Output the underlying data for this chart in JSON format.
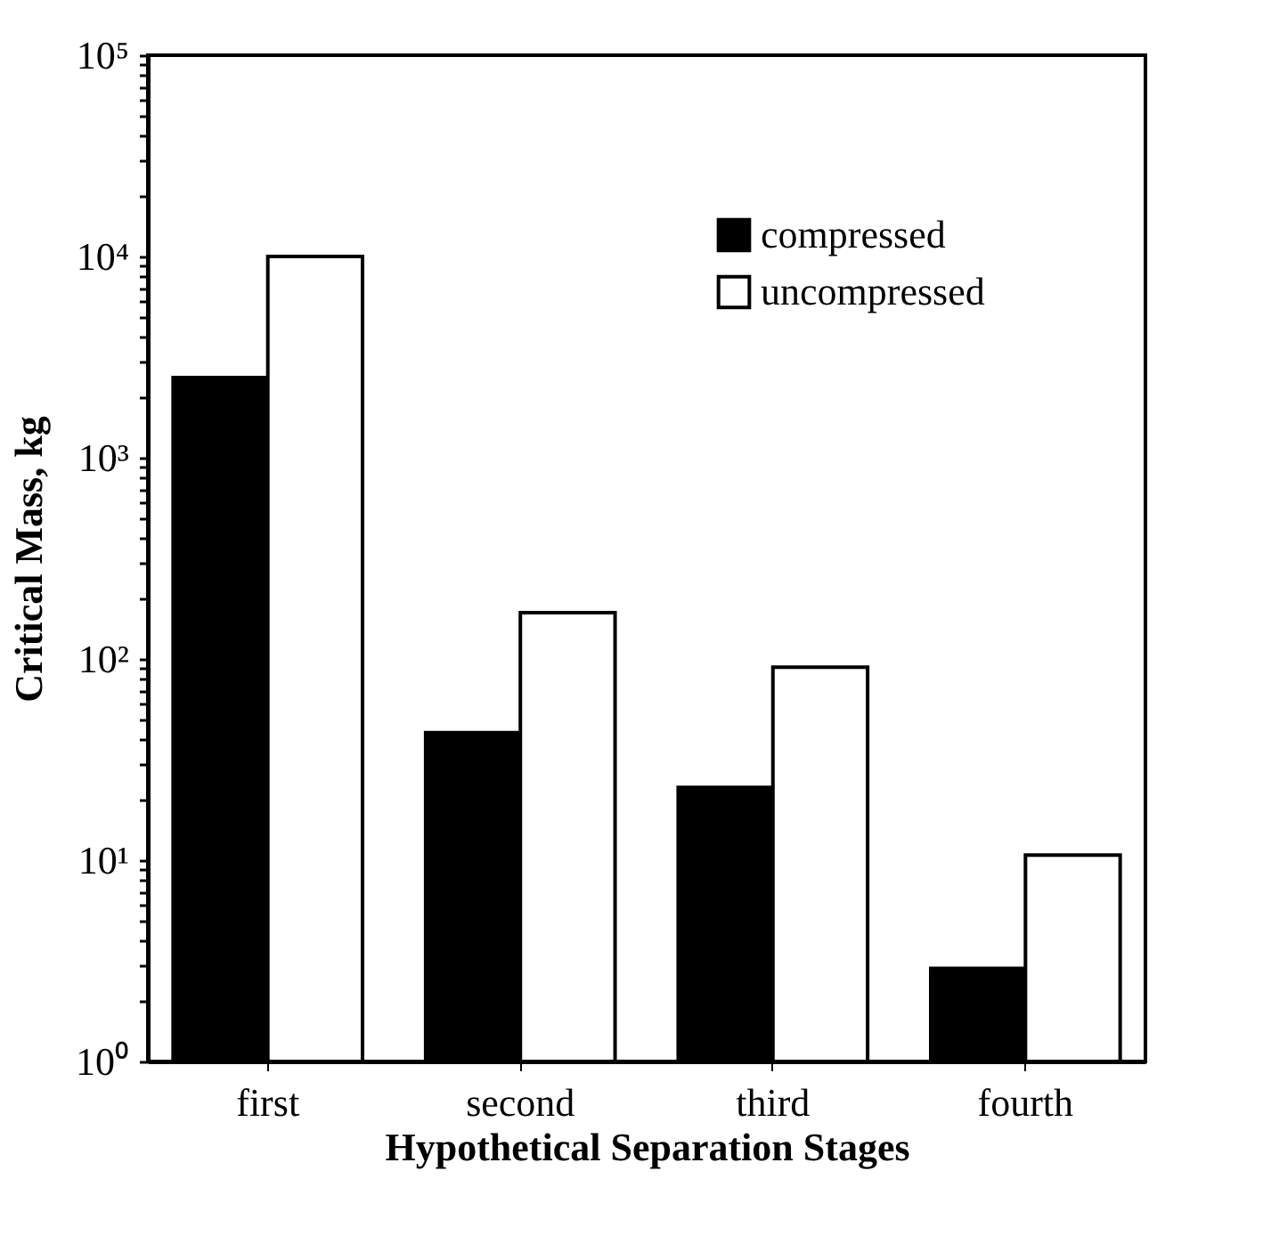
{
  "chart_data": {
    "type": "bar",
    "xlabel": "Hypothetical Separation Stages",
    "ylabel": "Critical Mass, kg",
    "categories": [
      "first",
      "second",
      "third",
      "fourth"
    ],
    "series": [
      {
        "name": "compressed",
        "color": "#000000",
        "values": [
          2500,
          43,
          23,
          2.9
        ]
      },
      {
        "name": "uncompressed",
        "color": "#ffffff",
        "values": [
          10000,
          170,
          91,
          10.6
        ]
      }
    ],
    "log": true,
    "ylim": [
      1,
      100000
    ],
    "yticks": [
      {
        "value": 1,
        "label": "10⁰"
      },
      {
        "value": 2,
        "label": null
      },
      {
        "value": 3,
        "label": null
      },
      {
        "value": 4,
        "label": null
      },
      {
        "value": 5,
        "label": null
      },
      {
        "value": 6,
        "label": null
      },
      {
        "value": 7,
        "label": null
      },
      {
        "value": 8,
        "label": null
      },
      {
        "value": 9,
        "label": null
      },
      {
        "value": 10,
        "label": "10¹"
      },
      {
        "value": 20,
        "label": null
      },
      {
        "value": 30,
        "label": null
      },
      {
        "value": 40,
        "label": null
      },
      {
        "value": 50,
        "label": null
      },
      {
        "value": 60,
        "label": null
      },
      {
        "value": 70,
        "label": null
      },
      {
        "value": 80,
        "label": null
      },
      {
        "value": 90,
        "label": null
      },
      {
        "value": 100,
        "label": "10²"
      },
      {
        "value": 200,
        "label": null
      },
      {
        "value": 300,
        "label": null
      },
      {
        "value": 400,
        "label": null
      },
      {
        "value": 500,
        "label": null
      },
      {
        "value": 600,
        "label": null
      },
      {
        "value": 700,
        "label": null
      },
      {
        "value": 800,
        "label": null
      },
      {
        "value": 900,
        "label": null
      },
      {
        "value": 1000,
        "label": "10³"
      },
      {
        "value": 2000,
        "label": null
      },
      {
        "value": 3000,
        "label": null
      },
      {
        "value": 4000,
        "label": null
      },
      {
        "value": 5000,
        "label": null
      },
      {
        "value": 6000,
        "label": null
      },
      {
        "value": 7000,
        "label": null
      },
      {
        "value": 8000,
        "label": null
      },
      {
        "value": 9000,
        "label": null
      },
      {
        "value": 10000,
        "label": "10⁴"
      },
      {
        "value": 20000,
        "label": null
      },
      {
        "value": 30000,
        "label": null
      },
      {
        "value": 40000,
        "label": null
      },
      {
        "value": 50000,
        "label": null
      },
      {
        "value": 60000,
        "label": null
      },
      {
        "value": 70000,
        "label": null
      },
      {
        "value": 80000,
        "label": null
      },
      {
        "value": 90000,
        "label": null
      },
      {
        "value": 100000,
        "label": "10⁵"
      }
    ],
    "grid": false,
    "legend": "top right"
  }
}
